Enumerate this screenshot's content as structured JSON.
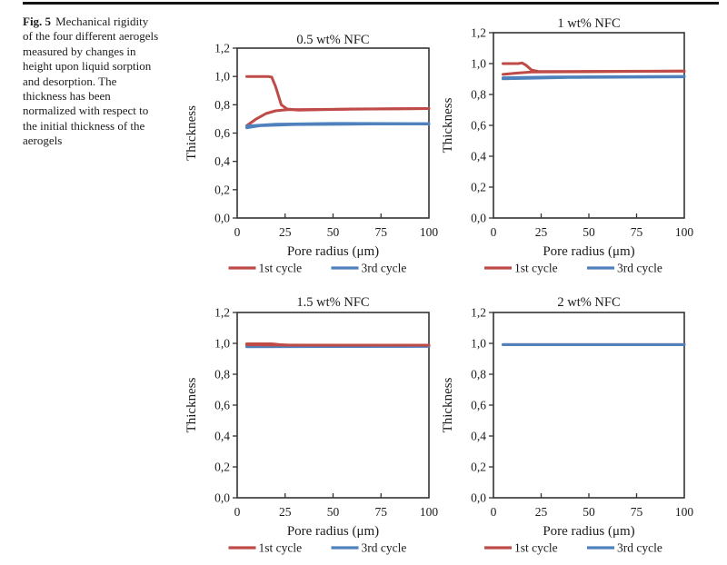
{
  "figure_caption": {
    "label": "Fig. 5",
    "text": "Mechanical rigidity\nof the four different aerogels\nmeasured by changes in\nheight upon liquid sorption\nand desorption. The\nthickness has been\nnormalized with respect to\nthe initial thickness of the\naerogels"
  },
  "colors": {
    "cycle1_red": "#bf4b48",
    "cycle3_blue": "#4f81bd",
    "axis": "#333333",
    "text": "#1c1c1c"
  },
  "chart_data": [
    {
      "type": "line",
      "title": "0.5 wt% NFC",
      "xlabel": "Pore radius (μm)",
      "ylabel": "Thickness",
      "xlim": [
        0,
        100
      ],
      "ylim": [
        0,
        1.2
      ],
      "xticks": [
        0,
        25,
        50,
        75,
        100
      ],
      "xtick_labels": [
        "0",
        "25",
        "50",
        "75",
        "100"
      ],
      "yticks": [
        0,
        0.2,
        0.4,
        0.6,
        0.8,
        1.0,
        1.2
      ],
      "ytick_labels": [
        "0,0",
        "0,2",
        "0,4",
        "0,6",
        "0,8",
        "1,0",
        "1,2"
      ],
      "grid": false,
      "legend_position": "bottom",
      "legend": [
        {
          "label": "1st cycle",
          "color": "#bf4b48"
        },
        {
          "label": "3rd cycle",
          "color": "#4f81bd"
        }
      ],
      "series": [
        {
          "name": "1st cycle",
          "color": "#bf4b48",
          "paths": [
            [
              [
                5,
                1.0
              ],
              [
                16,
                1.0
              ],
              [
                18,
                0.995
              ],
              [
                20,
                0.93
              ],
              [
                23,
                0.8
              ],
              [
                26,
                0.77
              ],
              [
                32,
                0.762
              ],
              [
                60,
                0.77
              ],
              [
                100,
                0.773
              ]
            ],
            [
              [
                5,
                0.652
              ],
              [
                10,
                0.7
              ],
              [
                15,
                0.738
              ],
              [
                20,
                0.757
              ],
              [
                26,
                0.765
              ],
              [
                100,
                0.773
              ]
            ]
          ]
        },
        {
          "name": "3rd cycle",
          "color": "#4f81bd",
          "paths": [
            [
              [
                5,
                0.638
              ],
              [
                12,
                0.652
              ],
              [
                30,
                0.66
              ],
              [
                70,
                0.664
              ],
              [
                100,
                0.664
              ]
            ],
            [
              [
                5,
                0.65
              ],
              [
                20,
                0.662
              ],
              [
                50,
                0.668
              ],
              [
                100,
                0.667
              ]
            ]
          ]
        }
      ]
    },
    {
      "type": "line",
      "title": "1 wt% NFC",
      "xlabel": "Pore radius (μm)",
      "ylabel": "Thickness",
      "xlim": [
        0,
        100
      ],
      "ylim": [
        0,
        1.2
      ],
      "xticks": [
        0,
        25,
        50,
        75,
        100
      ],
      "xtick_labels": [
        "0",
        "25",
        "50",
        "75",
        "100"
      ],
      "yticks": [
        0,
        0.2,
        0.4,
        0.6,
        0.8,
        1.0,
        1.2
      ],
      "ytick_labels": [
        "0,0",
        "0,2",
        "0,4",
        "0,6",
        "0,8",
        "1,0",
        "1,2"
      ],
      "grid": false,
      "legend_position": "bottom",
      "legend": [
        {
          "label": "1st cycle",
          "color": "#bf4b48"
        },
        {
          "label": "3rd cycle",
          "color": "#4f81bd"
        }
      ],
      "series": [
        {
          "name": "1st cycle",
          "color": "#bf4b48",
          "paths": [
            [
              [
                5,
                1.0
              ],
              [
                13,
                1.0
              ],
              [
                15,
                1.004
              ],
              [
                17,
                0.99
              ],
              [
                20,
                0.958
              ],
              [
                24,
                0.948
              ],
              [
                100,
                0.951
              ]
            ],
            [
              [
                5,
                0.93
              ],
              [
                12,
                0.938
              ],
              [
                20,
                0.945
              ],
              [
                100,
                0.951
              ]
            ]
          ]
        },
        {
          "name": "3rd cycle",
          "color": "#4f81bd",
          "paths": [
            [
              [
                5,
                0.908
              ],
              [
                30,
                0.913
              ],
              [
                100,
                0.917
              ]
            ],
            [
              [
                5,
                0.901
              ],
              [
                40,
                0.91
              ],
              [
                100,
                0.914
              ]
            ]
          ]
        }
      ]
    },
    {
      "type": "line",
      "title": "1.5 wt% NFC",
      "xlabel": "Pore radius (μm)",
      "ylabel": "Thickness",
      "xlim": [
        0,
        100
      ],
      "ylim": [
        0,
        1.2
      ],
      "xticks": [
        0,
        25,
        50,
        75,
        100
      ],
      "xtick_labels": [
        "0",
        "25",
        "50",
        "75",
        "100"
      ],
      "yticks": [
        0,
        0.2,
        0.4,
        0.6,
        0.8,
        1.0,
        1.2
      ],
      "ytick_labels": [
        "0,0",
        "0,2",
        "0,4",
        "0,6",
        "0,8",
        "1,0",
        "1,2"
      ],
      "grid": false,
      "legend_position": "bottom",
      "legend": [
        {
          "label": "1st cycle",
          "color": "#bf4b48"
        },
        {
          "label": "3rd cycle",
          "color": "#4f81bd"
        }
      ],
      "series": [
        {
          "name": "3rd cycle",
          "color": "#4f81bd",
          "paths": [
            [
              [
                5,
                0.978
              ],
              [
                100,
                0.98
              ]
            ],
            [
              [
                5,
                0.981
              ],
              [
                100,
                0.983
              ]
            ]
          ]
        },
        {
          "name": "1st cycle",
          "color": "#bf4b48",
          "paths": [
            [
              [
                5,
                0.997
              ],
              [
                18,
                0.997
              ],
              [
                22,
                0.992
              ],
              [
                27,
                0.988
              ],
              [
                100,
                0.988
              ]
            ],
            [
              [
                5,
                0.991
              ],
              [
                20,
                0.989
              ],
              [
                100,
                0.988
              ]
            ]
          ]
        }
      ]
    },
    {
      "type": "line",
      "title": "2 wt% NFC",
      "xlabel": "Pore radius (μm)",
      "ylabel": "Thickness",
      "xlim": [
        0,
        100
      ],
      "ylim": [
        0,
        1.2
      ],
      "xticks": [
        0,
        25,
        50,
        75,
        100
      ],
      "xtick_labels": [
        "0",
        "25",
        "50",
        "75",
        "100"
      ],
      "yticks": [
        0,
        0.2,
        0.4,
        0.6,
        0.8,
        1.0,
        1.2
      ],
      "ytick_labels": [
        "0,0",
        "0,2",
        "0,4",
        "0,6",
        "0,8",
        "1,0",
        "1,2"
      ],
      "grid": false,
      "legend_position": "bottom",
      "legend": [
        {
          "label": "1st cycle",
          "color": "#bf4b48"
        },
        {
          "label": "3rd cycle",
          "color": "#4f81bd"
        }
      ],
      "series": [
        {
          "name": "1st cycle",
          "color": "#bf4b48",
          "paths": [
            [
              [
                5,
                0.992
              ],
              [
                100,
                0.992
              ]
            ]
          ]
        },
        {
          "name": "3rd cycle",
          "color": "#4f81bd",
          "paths": [
            [
              [
                5,
                0.992
              ],
              [
                100,
                0.992
              ]
            ]
          ]
        }
      ]
    }
  ]
}
